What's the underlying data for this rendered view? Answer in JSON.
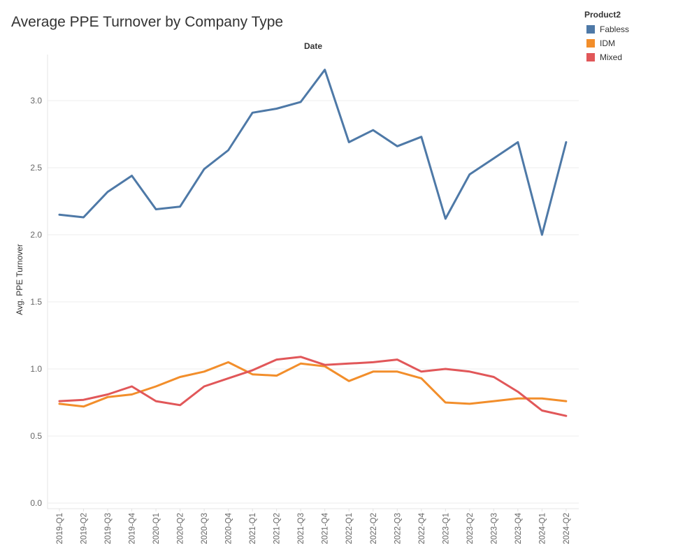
{
  "chart_data": {
    "type": "line",
    "title": "Average PPE Turnover by Company Type",
    "xlabel": "Date",
    "ylabel": "Avg. PPE Turnover",
    "ylim": [
      0,
      3.3
    ],
    "yticks": [
      "0.0",
      "0.5",
      "1.0",
      "1.5",
      "2.0",
      "2.5",
      "3.0"
    ],
    "grid": true,
    "legend_position": "top-right",
    "legend_title": "Product2",
    "categories": [
      "2019-Q1",
      "2019-Q2",
      "2019-Q3",
      "2019-Q4",
      "2020-Q1",
      "2020-Q2",
      "2020-Q3",
      "2020-Q4",
      "2021-Q1",
      "2021-Q2",
      "2021-Q3",
      "2021-Q4",
      "2022-Q1",
      "2022-Q2",
      "2022-Q3",
      "2022-Q4",
      "2023-Q1",
      "2023-Q2",
      "2023-Q3",
      "2023-Q4",
      "2024-Q1",
      "2024-Q2"
    ],
    "series": [
      {
        "name": "Fabless",
        "color": "#4e79a7",
        "values": [
          2.15,
          2.13,
          2.32,
          2.44,
          2.19,
          2.21,
          2.49,
          2.63,
          2.91,
          2.94,
          2.99,
          3.23,
          2.69,
          2.78,
          2.66,
          2.73,
          2.12,
          2.45,
          2.57,
          2.69,
          2.0,
          2.69
        ]
      },
      {
        "name": "IDM",
        "color": "#f28e2b",
        "values": [
          0.74,
          0.72,
          0.79,
          0.81,
          0.87,
          0.94,
          0.98,
          1.05,
          0.96,
          0.95,
          1.04,
          1.02,
          0.91,
          0.98,
          0.98,
          0.93,
          0.75,
          0.74,
          0.76,
          0.78,
          0.78,
          0.76
        ]
      },
      {
        "name": "Mixed",
        "color": "#e15759",
        "values": [
          0.76,
          0.77,
          0.81,
          0.87,
          0.76,
          0.73,
          0.87,
          0.93,
          0.99,
          1.07,
          1.09,
          1.03,
          1.04,
          1.05,
          1.07,
          0.98,
          1.0,
          0.98,
          0.94,
          0.83,
          0.69,
          0.65
        ]
      }
    ]
  }
}
